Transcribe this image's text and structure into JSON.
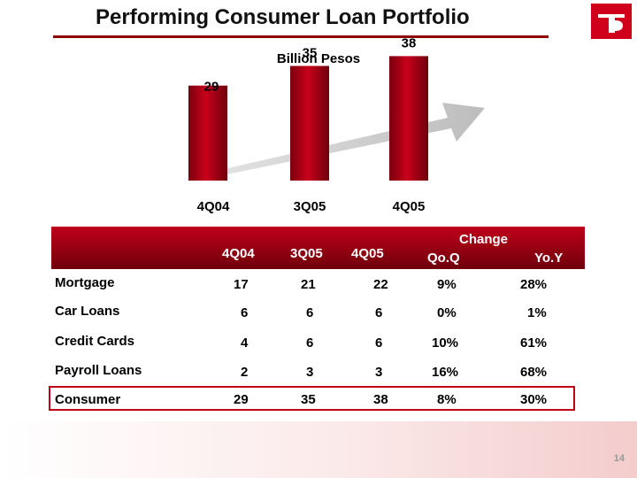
{
  "title": "Performing Consumer Loan Portfolio",
  "page_number": "14",
  "colors": {
    "accent": "#c00018",
    "bar_dark": "#6e000c",
    "arrow": "#c8c8c8"
  },
  "chart_data": {
    "type": "bar",
    "subtitle": "Billion Pesos",
    "categories": [
      "4Q04",
      "3Q05",
      "4Q05"
    ],
    "values": [
      29,
      35,
      38
    ],
    "value_labels": [
      "29",
      "35",
      "38"
    ],
    "ylim": [
      0,
      40
    ],
    "grid": false,
    "trend_arrow": true
  },
  "table": {
    "header": {
      "col1": "4Q04",
      "col2": "3Q05",
      "col3": "4Q05",
      "change": "Change",
      "qoq": "Qo.Q",
      "yoy": "Yo.Y"
    },
    "rows": [
      {
        "label": "Mortgage",
        "q404": "17",
        "q305": "21",
        "q405": "22",
        "qoq": "9%",
        "yoy": "28%"
      },
      {
        "label": "Car Loans",
        "q404": "6",
        "q305": "6",
        "q405": "6",
        "qoq": "0%",
        "yoy": "1%"
      },
      {
        "label": "Credit Cards",
        "q404": "4",
        "q305": "6",
        "q405": "6",
        "qoq": "10%",
        "yoy": "61%"
      },
      {
        "label": "Payroll Loans",
        "q404": "2",
        "q305": "3",
        "q405": "3",
        "qoq": "16%",
        "yoy": "68%"
      },
      {
        "label": "Consumer",
        "q404": "29",
        "q305": "35",
        "q405": "38",
        "qoq": "8%",
        "yoy": "30%"
      }
    ]
  }
}
